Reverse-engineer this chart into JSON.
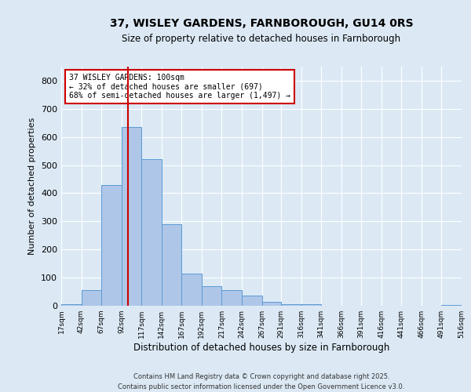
{
  "title_line1": "37, WISLEY GARDENS, FARNBOROUGH, GU14 0RS",
  "title_line2": "Size of property relative to detached houses in Farnborough",
  "xlabel": "Distribution of detached houses by size in Farnborough",
  "ylabel": "Number of detached properties",
  "annotation_line1": "37 WISLEY GARDENS: 100sqm",
  "annotation_line2": "← 32% of detached houses are smaller (697)",
  "annotation_line3": "68% of semi-detached houses are larger (1,497) →",
  "footer_line1": "Contains HM Land Registry data © Crown copyright and database right 2025.",
  "footer_line2": "Contains public sector information licensed under the Open Government Licence v3.0.",
  "bar_edges": [
    17,
    42,
    67,
    92,
    117,
    142,
    167,
    192,
    217,
    242,
    267,
    291,
    316,
    341,
    366,
    391,
    416,
    441,
    466,
    491,
    516
  ],
  "bar_heights": [
    5,
    55,
    430,
    635,
    520,
    290,
    115,
    70,
    55,
    35,
    15,
    5,
    5,
    0,
    0,
    0,
    0,
    0,
    0,
    3
  ],
  "bar_color": "#aec6e8",
  "bar_edge_color": "#5b9bd5",
  "red_line_x": 100,
  "ylim": [
    0,
    850
  ],
  "yticks": [
    0,
    100,
    200,
    300,
    400,
    500,
    600,
    700,
    800
  ],
  "bg_color": "#dce9f5",
  "grid_color": "#ffffff"
}
